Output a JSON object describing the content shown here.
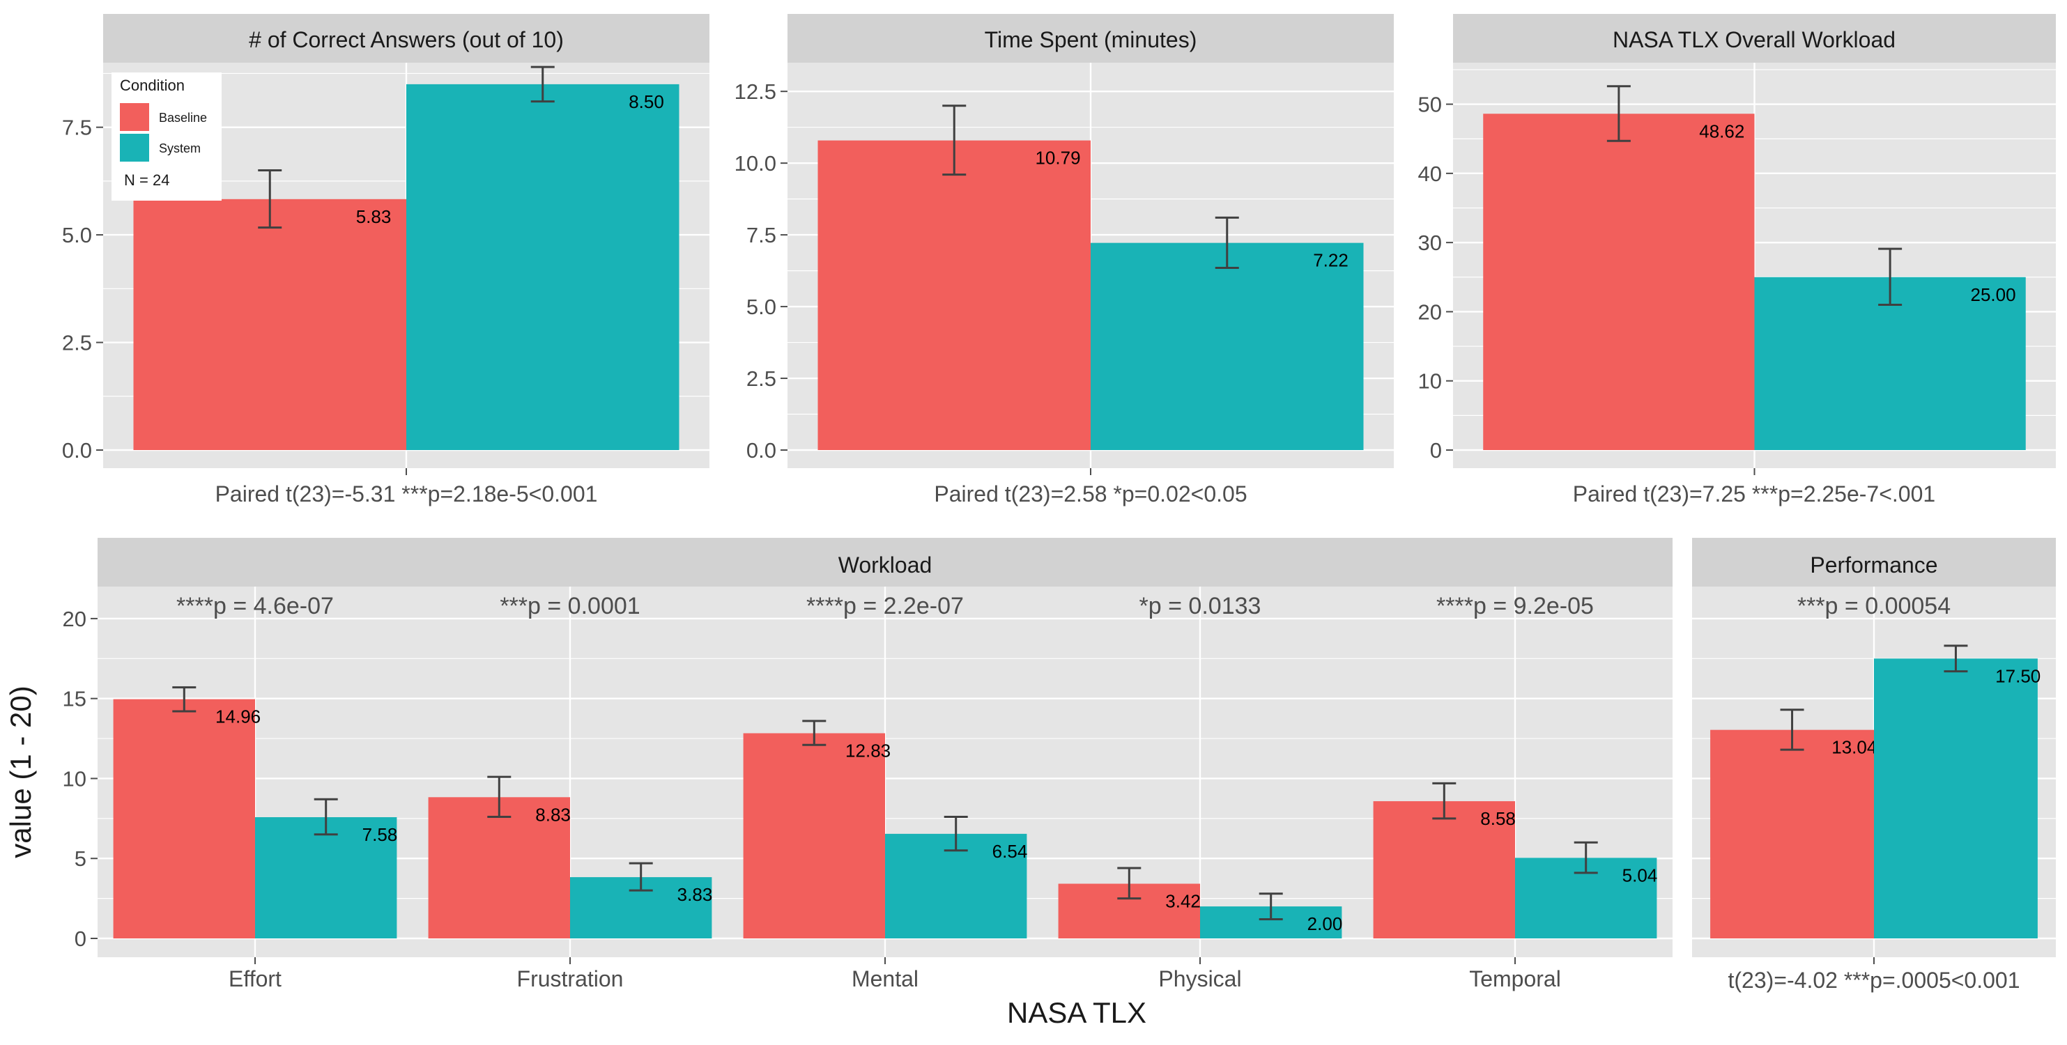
{
  "colors": {
    "baseline": "#F25F5C",
    "system": "#19B3B6",
    "panel_bg": "#E5E5E5",
    "strip_bg": "#D2D2D2",
    "grid": "#FFFFFF",
    "axis_text": "#4D4D4D",
    "error_bar": "#404040"
  },
  "legend": {
    "title": "Condition",
    "items": [
      "Baseline",
      "System"
    ],
    "note": "N = 24"
  },
  "y_axis_label": "value (1 - 20)",
  "x_axis_label": "NASA TLX",
  "chart_data": [
    {
      "type": "bar",
      "title": "# of Correct Answers (out of 10)",
      "caption": "Paired t(23)=-5.31 ***p=2.18e-5<0.001",
      "categories": [
        "Baseline",
        "System"
      ],
      "values": [
        5.83,
        8.5
      ],
      "value_labels": [
        "5.83",
        "8.50"
      ],
      "error": [
        [
          5.17,
          6.5
        ],
        [
          8.1,
          8.9
        ]
      ],
      "ylim": [
        0,
        9
      ],
      "yticks": [
        0,
        2.5,
        5,
        7.5
      ],
      "ytick_labels": [
        "0.0",
        "2.5",
        "5.0",
        "7.5"
      ],
      "legend_placement": "top-left"
    },
    {
      "type": "bar",
      "title": "Time Spent (minutes)",
      "caption": "Paired t(23)=2.58 *p=0.02<0.05",
      "categories": [
        "Baseline",
        "System"
      ],
      "values": [
        10.79,
        7.22
      ],
      "value_labels": [
        "10.79",
        "7.22"
      ],
      "error": [
        [
          9.6,
          12.0
        ],
        [
          6.35,
          8.1
        ]
      ],
      "ylim": [
        0,
        13.5
      ],
      "yticks": [
        0,
        2.5,
        5,
        7.5,
        10,
        12.5
      ],
      "ytick_labels": [
        "0.0",
        "2.5",
        "5.0",
        "7.5",
        "10.0",
        "12.5"
      ]
    },
    {
      "type": "bar",
      "title": "NASA TLX Overall Workload",
      "caption": "Paired t(23)=7.25 ***p=2.25e-7<.001",
      "categories": [
        "Baseline",
        "System"
      ],
      "values": [
        48.62,
        25.0
      ],
      "value_labels": [
        "48.62",
        "25.00"
      ],
      "error": [
        [
          44.7,
          52.6
        ],
        [
          21.0,
          29.1
        ]
      ],
      "ylim": [
        0,
        56
      ],
      "yticks": [
        0,
        10,
        20,
        30,
        40,
        50
      ],
      "ytick_labels": [
        "0",
        "10",
        "20",
        "30",
        "40",
        "50"
      ]
    },
    {
      "type": "bar",
      "title": "Workload",
      "categories": [
        "Effort",
        "Frustration",
        "Mental",
        "Physical",
        "Temporal"
      ],
      "annotations": [
        "****p = 4.6e-07",
        "***p = 0.0001",
        "****p = 2.2e-07",
        "*p = 0.0133",
        "****p = 9.2e-05"
      ],
      "series": [
        {
          "name": "Baseline",
          "values": [
            14.96,
            8.83,
            12.83,
            3.42,
            8.58
          ],
          "value_labels": [
            "14.96",
            "8.83",
            "12.83",
            "3.42",
            "8.58"
          ],
          "error": [
            [
              14.2,
              15.7
            ],
            [
              7.6,
              10.1
            ],
            [
              12.1,
              13.6
            ],
            [
              2.5,
              4.4
            ],
            [
              7.5,
              9.7
            ]
          ]
        },
        {
          "name": "System",
          "values": [
            7.58,
            3.83,
            6.54,
            2.0,
            5.04
          ],
          "value_labels": [
            "7.58",
            "3.83",
            "6.54",
            "2.00",
            "5.04"
          ],
          "error": [
            [
              6.5,
              8.7
            ],
            [
              3.0,
              4.7
            ],
            [
              5.5,
              7.6
            ],
            [
              1.2,
              2.8
            ],
            [
              4.1,
              6.0
            ]
          ]
        }
      ],
      "ylim": [
        0,
        22
      ],
      "yticks": [
        0,
        5,
        10,
        15,
        20
      ],
      "ytick_labels": [
        "0",
        "5",
        "10",
        "15",
        "20"
      ]
    },
    {
      "type": "bar",
      "title": "Performance",
      "caption": "t(23)=-4.02 ***p=.0005<0.001",
      "annotations": [
        "***p = 0.00054"
      ],
      "series": [
        {
          "name": "Baseline",
          "values": [
            13.04
          ],
          "value_labels": [
            "13.04"
          ],
          "error": [
            [
              11.8,
              14.3
            ]
          ]
        },
        {
          "name": "System",
          "values": [
            17.5
          ],
          "value_labels": [
            "17.50"
          ],
          "error": [
            [
              16.7,
              18.3
            ]
          ]
        }
      ],
      "ylim": [
        0,
        22
      ]
    }
  ]
}
